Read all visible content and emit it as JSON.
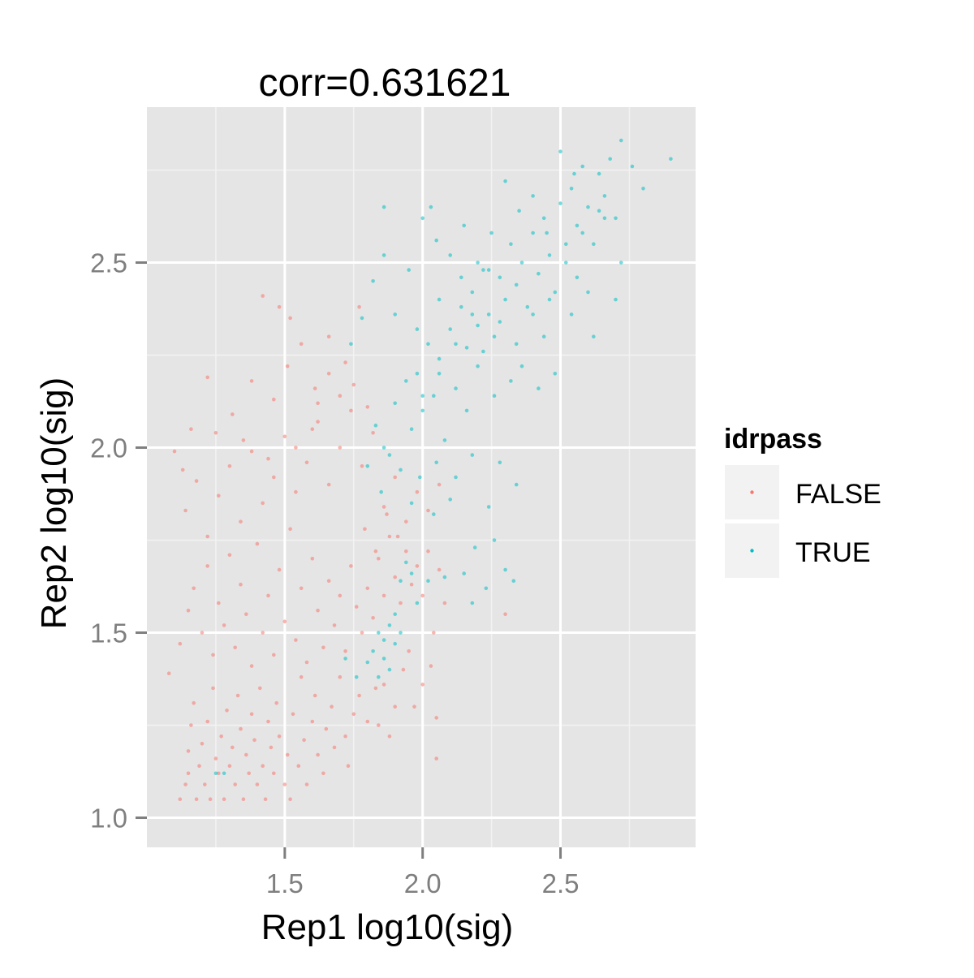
{
  "chart_data": {
    "type": "scatter",
    "title": "corr=0.631621",
    "xlabel": "Rep1 log10(sig)",
    "ylabel": "Rep2 log10(sig)",
    "xlim": [
      1.0,
      2.99
    ],
    "ylim": [
      0.92,
      2.92
    ],
    "x_ticks": [
      "1.5",
      "2.0",
      "2.5"
    ],
    "y_ticks": [
      "1.0",
      "1.5",
      "2.0",
      "2.5"
    ],
    "x_tick_values": [
      1.5,
      2.0,
      2.5
    ],
    "y_tick_values": [
      1.0,
      1.5,
      2.0,
      2.5
    ],
    "grid": true,
    "legend": {
      "title": "idrpass",
      "placement": "right",
      "entries": [
        {
          "label": "FALSE",
          "color": "#F8766D"
        },
        {
          "label": "TRUE",
          "color": "#00BFC4"
        }
      ]
    },
    "series": [
      {
        "name": "FALSE",
        "color": "#F8766D",
        "points": [
          [
            1.08,
            1.39
          ],
          [
            1.12,
            1.05
          ],
          [
            1.14,
            1.09
          ],
          [
            1.15,
            1.12
          ],
          [
            1.15,
            1.18
          ],
          [
            1.16,
            1.25
          ],
          [
            1.17,
            1.31
          ],
          [
            1.18,
            1.05
          ],
          [
            1.19,
            1.14
          ],
          [
            1.2,
            1.2
          ],
          [
            1.21,
            1.09
          ],
          [
            1.22,
            1.26
          ],
          [
            1.23,
            1.05
          ],
          [
            1.24,
            1.35
          ],
          [
            1.25,
            1.16
          ],
          [
            1.26,
            1.12
          ],
          [
            1.27,
            1.22
          ],
          [
            1.28,
            1.05
          ],
          [
            1.29,
            1.29
          ],
          [
            1.3,
            1.14
          ],
          [
            1.31,
            1.19
          ],
          [
            1.32,
            1.09
          ],
          [
            1.33,
            1.33
          ],
          [
            1.34,
            1.24
          ],
          [
            1.35,
            1.05
          ],
          [
            1.36,
            1.17
          ],
          [
            1.37,
            1.12
          ],
          [
            1.38,
            1.28
          ],
          [
            1.39,
            1.21
          ],
          [
            1.4,
            1.09
          ],
          [
            1.41,
            1.35
          ],
          [
            1.42,
            1.14
          ],
          [
            1.43,
            1.05
          ],
          [
            1.44,
            1.26
          ],
          [
            1.45,
            1.19
          ],
          [
            1.46,
            1.12
          ],
          [
            1.47,
            1.31
          ],
          [
            1.48,
            1.22
          ],
          [
            1.5,
            1.09
          ],
          [
            1.51,
            1.17
          ],
          [
            1.52,
            1.05
          ],
          [
            1.53,
            1.28
          ],
          [
            1.55,
            1.14
          ],
          [
            1.56,
            1.38
          ],
          [
            1.57,
            1.21
          ],
          [
            1.58,
            1.09
          ],
          [
            1.6,
            1.26
          ],
          [
            1.61,
            1.33
          ],
          [
            1.62,
            1.17
          ],
          [
            1.64,
            1.12
          ],
          [
            1.65,
            1.24
          ],
          [
            1.67,
            1.3
          ],
          [
            1.68,
            1.19
          ],
          [
            1.7,
            1.38
          ],
          [
            1.72,
            1.22
          ],
          [
            1.73,
            1.14
          ],
          [
            1.75,
            1.28
          ],
          [
            1.77,
            1.33
          ],
          [
            1.8,
            1.26
          ],
          [
            1.83,
            1.35
          ],
          [
            1.12,
            1.47
          ],
          [
            1.15,
            1.56
          ],
          [
            1.17,
            1.62
          ],
          [
            1.2,
            1.5
          ],
          [
            1.22,
            1.68
          ],
          [
            1.24,
            1.44
          ],
          [
            1.26,
            1.58
          ],
          [
            1.28,
            1.52
          ],
          [
            1.3,
            1.71
          ],
          [
            1.32,
            1.46
          ],
          [
            1.34,
            1.63
          ],
          [
            1.36,
            1.55
          ],
          [
            1.38,
            1.41
          ],
          [
            1.4,
            1.74
          ],
          [
            1.42,
            1.5
          ],
          [
            1.44,
            1.6
          ],
          [
            1.46,
            1.44
          ],
          [
            1.48,
            1.67
          ],
          [
            1.5,
            1.53
          ],
          [
            1.52,
            1.78
          ],
          [
            1.54,
            1.48
          ],
          [
            1.56,
            1.62
          ],
          [
            1.58,
            1.42
          ],
          [
            1.6,
            1.7
          ],
          [
            1.62,
            1.56
          ],
          [
            1.64,
            1.46
          ],
          [
            1.66,
            1.64
          ],
          [
            1.68,
            1.52
          ],
          [
            1.7,
            1.6
          ],
          [
            1.72,
            1.45
          ],
          [
            1.74,
            1.68
          ],
          [
            1.76,
            1.57
          ],
          [
            1.78,
            1.5
          ],
          [
            1.8,
            1.62
          ],
          [
            1.82,
            1.54
          ],
          [
            1.84,
            1.7
          ],
          [
            1.86,
            1.6
          ],
          [
            1.88,
            1.76
          ],
          [
            1.9,
            1.65
          ],
          [
            1.92,
            1.58
          ],
          [
            1.94,
            1.72
          ],
          [
            1.96,
            1.63
          ],
          [
            1.98,
            1.68
          ],
          [
            2.0,
            1.6
          ],
          [
            2.02,
            1.72
          ],
          [
            2.04,
            1.5
          ],
          [
            2.06,
            1.67
          ],
          [
            2.08,
            1.58
          ],
          [
            1.93,
            1.4
          ],
          [
            1.97,
            1.3
          ],
          [
            2.0,
            1.36
          ],
          [
            2.03,
            1.41
          ],
          [
            2.05,
            1.27
          ],
          [
            1.86,
            1.36
          ],
          [
            1.9,
            1.3
          ],
          [
            1.95,
            1.45
          ],
          [
            2.3,
            1.55
          ],
          [
            2.05,
            1.16
          ],
          [
            1.88,
            1.22
          ],
          [
            1.84,
            1.25
          ],
          [
            1.14,
            1.83
          ],
          [
            1.18,
            1.91
          ],
          [
            1.22,
            1.76
          ],
          [
            1.26,
            1.87
          ],
          [
            1.3,
            1.95
          ],
          [
            1.34,
            1.8
          ],
          [
            1.38,
            1.99
          ],
          [
            1.42,
            1.85
          ],
          [
            1.46,
            1.92
          ],
          [
            1.5,
            2.03
          ],
          [
            1.54,
            1.88
          ],
          [
            1.58,
            1.96
          ],
          [
            1.62,
            2.07
          ],
          [
            1.66,
            1.9
          ],
          [
            1.7,
            2.0
          ],
          [
            1.74,
            2.1
          ],
          [
            1.78,
            1.95
          ],
          [
            1.82,
            2.04
          ],
          [
            1.86,
            1.84
          ],
          [
            1.9,
            1.92
          ],
          [
            1.94,
            1.8
          ],
          [
            1.98,
            1.88
          ],
          [
            2.02,
            1.83
          ],
          [
            2.06,
            1.9
          ],
          [
            1.79,
            1.78
          ],
          [
            1.83,
            1.72
          ],
          [
            1.87,
            1.82
          ],
          [
            1.91,
            1.76
          ],
          [
            1.16,
            2.05
          ],
          [
            1.22,
            2.19
          ],
          [
            1.31,
            2.09
          ],
          [
            1.38,
            2.18
          ],
          [
            1.46,
            2.13
          ],
          [
            1.51,
            2.22
          ],
          [
            1.56,
            2.28
          ],
          [
            1.61,
            2.16
          ],
          [
            1.66,
            2.3
          ],
          [
            1.72,
            2.23
          ],
          [
            1.77,
            2.38
          ],
          [
            1.48,
            2.38
          ],
          [
            1.52,
            2.35
          ],
          [
            1.42,
            2.41
          ],
          [
            1.66,
            2.2
          ],
          [
            1.7,
            2.14
          ],
          [
            1.6,
            2.05
          ],
          [
            1.54,
            2.0
          ],
          [
            1.1,
            1.99
          ],
          [
            1.13,
            1.94
          ],
          [
            1.25,
            2.04
          ],
          [
            1.35,
            2.02
          ],
          [
            1.44,
            1.97
          ],
          [
            1.62,
            2.12
          ],
          [
            1.75,
            2.17
          ],
          [
            1.8,
            2.11
          ]
        ]
      },
      {
        "name": "TRUE",
        "color": "#00BFC4",
        "points": [
          [
            1.82,
            1.45
          ],
          [
            1.84,
            1.5
          ],
          [
            1.86,
            1.43
          ],
          [
            1.88,
            1.52
          ],
          [
            1.9,
            1.47
          ],
          [
            1.92,
            1.5
          ],
          [
            1.84,
            1.38
          ],
          [
            1.88,
            1.4
          ],
          [
            1.8,
            1.42
          ],
          [
            1.86,
            1.48
          ],
          [
            1.9,
            1.55
          ],
          [
            1.92,
            1.64
          ],
          [
            1.96,
            1.66
          ],
          [
            2.02,
            1.64
          ],
          [
            2.08,
            1.65
          ],
          [
            1.94,
            1.69
          ],
          [
            1.98,
            1.58
          ],
          [
            1.76,
            1.38
          ],
          [
            1.72,
            1.43
          ],
          [
            1.25,
            1.12
          ],
          [
            1.28,
            1.12
          ],
          [
            2.18,
            1.58
          ],
          [
            2.23,
            1.62
          ],
          [
            2.26,
            1.75
          ],
          [
            2.3,
            1.67
          ],
          [
            2.33,
            1.64
          ],
          [
            2.34,
            1.9
          ],
          [
            2.19,
            1.73
          ],
          [
            2.15,
            1.66
          ],
          [
            1.8,
            1.95
          ],
          [
            1.83,
            2.06
          ],
          [
            1.85,
            1.88
          ],
          [
            1.86,
            2.0
          ],
          [
            1.88,
            1.98
          ],
          [
            1.9,
            2.12
          ],
          [
            1.92,
            1.94
          ],
          [
            1.94,
            2.18
          ],
          [
            1.96,
            2.05
          ],
          [
            1.98,
            2.2
          ],
          [
            2.0,
            2.1
          ],
          [
            2.02,
            2.28
          ],
          [
            2.04,
            2.14
          ],
          [
            2.06,
            2.24
          ],
          [
            2.08,
            2.02
          ],
          [
            2.1,
            2.32
          ],
          [
            2.12,
            2.16
          ],
          [
            2.14,
            2.38
          ],
          [
            2.16,
            2.27
          ],
          [
            2.18,
            2.42
          ],
          [
            2.2,
            2.33
          ],
          [
            2.22,
            2.48
          ],
          [
            2.24,
            2.36
          ],
          [
            2.26,
            2.3
          ],
          [
            2.28,
            2.46
          ],
          [
            2.3,
            2.4
          ],
          [
            2.32,
            2.55
          ],
          [
            2.34,
            2.44
          ],
          [
            2.36,
            2.5
          ],
          [
            2.38,
            2.38
          ],
          [
            2.4,
            2.58
          ],
          [
            2.42,
            2.47
          ],
          [
            2.44,
            2.62
          ],
          [
            2.46,
            2.52
          ],
          [
            2.48,
            2.42
          ],
          [
            2.5,
            2.66
          ],
          [
            2.52,
            2.55
          ],
          [
            2.54,
            2.7
          ],
          [
            2.56,
            2.6
          ],
          [
            2.58,
            2.76
          ],
          [
            2.6,
            2.65
          ],
          [
            2.62,
            2.55
          ],
          [
            2.64,
            2.74
          ],
          [
            2.66,
            2.68
          ],
          [
            2.68,
            2.78
          ],
          [
            2.7,
            2.62
          ],
          [
            2.72,
            2.83
          ],
          [
            2.76,
            2.76
          ],
          [
            2.8,
            2.7
          ],
          [
            2.9,
            2.78
          ],
          [
            1.74,
            2.28
          ],
          [
            1.78,
            2.35
          ],
          [
            1.82,
            2.45
          ],
          [
            1.86,
            2.52
          ],
          [
            1.9,
            2.36
          ],
          [
            1.95,
            2.48
          ],
          [
            2.0,
            2.62
          ],
          [
            2.05,
            2.56
          ],
          [
            2.1,
            2.52
          ],
          [
            2.15,
            2.6
          ],
          [
            2.2,
            2.5
          ],
          [
            2.25,
            2.58
          ],
          [
            2.3,
            2.72
          ],
          [
            2.35,
            2.64
          ],
          [
            2.4,
            2.68
          ],
          [
            2.45,
            2.58
          ],
          [
            2.5,
            2.8
          ],
          [
            2.55,
            2.74
          ],
          [
            1.86,
            2.65
          ],
          [
            2.03,
            2.65
          ],
          [
            1.98,
            2.32
          ],
          [
            2.06,
            2.4
          ],
          [
            2.14,
            2.46
          ],
          [
            2.22,
            2.26
          ],
          [
            2.28,
            2.34
          ],
          [
            2.36,
            2.22
          ],
          [
            2.44,
            2.3
          ],
          [
            2.48,
            2.2
          ],
          [
            2.32,
            2.18
          ],
          [
            2.42,
            2.16
          ],
          [
            2.62,
            2.3
          ],
          [
            2.72,
            2.5
          ],
          [
            2.56,
            2.46
          ],
          [
            2.66,
            2.62
          ],
          [
            2.7,
            2.4
          ],
          [
            2.12,
            1.92
          ],
          [
            2.18,
            1.98
          ],
          [
            2.24,
            1.84
          ],
          [
            2.1,
            1.86
          ],
          [
            2.28,
            1.96
          ],
          [
            1.99,
            1.92
          ],
          [
            2.05,
            1.96
          ],
          [
            1.96,
            1.85
          ],
          [
            2.04,
            1.82
          ],
          [
            2.16,
            2.1
          ],
          [
            2.2,
            2.22
          ],
          [
            2.26,
            2.14
          ],
          [
            2.34,
            2.28
          ],
          [
            2.4,
            2.36
          ],
          [
            2.46,
            2.4
          ],
          [
            2.52,
            2.5
          ],
          [
            2.58,
            2.58
          ],
          [
            2.64,
            2.64
          ],
          [
            2.54,
            2.36
          ],
          [
            2.6,
            2.42
          ],
          [
            2.24,
            2.48
          ],
          [
            2.18,
            2.36
          ],
          [
            2.12,
            2.28
          ],
          [
            2.06,
            2.2
          ],
          [
            2.0,
            2.14
          ]
        ]
      }
    ]
  }
}
